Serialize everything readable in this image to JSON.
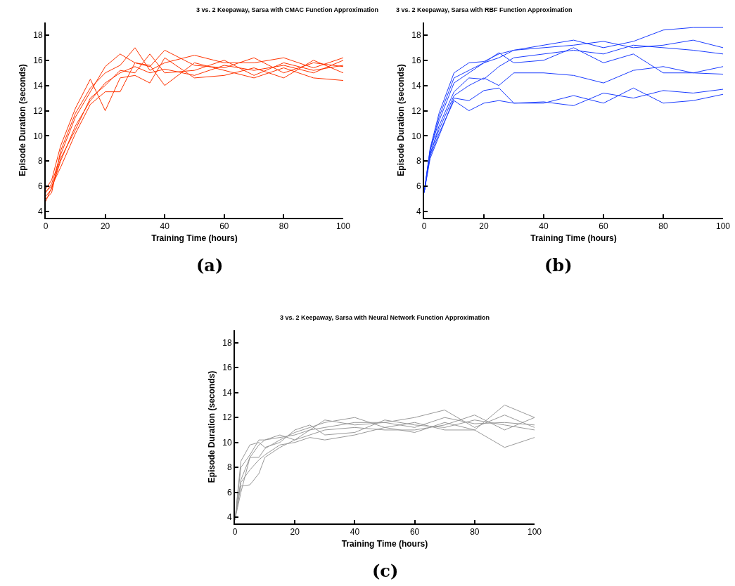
{
  "chart_data": [
    {
      "type": "line",
      "title": "3 vs. 2 Keepaway, Sarsa with CMAC Function Approximation",
      "xlabel": "Training Time (hours)",
      "ylabel": "Episode Duration (seconds)",
      "annotations": [
        "(a)"
      ],
      "xlim": [
        0,
        100
      ],
      "ylim": [
        3.5,
        19
      ],
      "xticks": [
        0,
        20,
        40,
        60,
        80,
        100
      ],
      "yticks": [
        4,
        6,
        8,
        10,
        12,
        14,
        16,
        18
      ],
      "x": [
        0,
        2,
        5,
        10,
        15,
        20,
        25,
        30,
        35,
        40,
        50,
        60,
        70,
        80,
        90,
        100
      ],
      "series": [
        {
          "color": "#ff3300",
          "values": [
            5.5,
            6.2,
            8.5,
            11.5,
            13.5,
            15.5,
            16.5,
            15.8,
            15.5,
            16.8,
            15.6,
            15.4,
            16.2,
            15.0,
            15.8,
            15.5
          ]
        },
        {
          "color": "#ff3300",
          "values": [
            5.2,
            5.8,
            8.0,
            10.8,
            12.8,
            14.2,
            15.0,
            15.5,
            15.0,
            15.3,
            14.8,
            15.6,
            15.2,
            15.6,
            15.0,
            16.0
          ]
        },
        {
          "color": "#ff3300",
          "values": [
            5.6,
            6.0,
            7.5,
            10.2,
            12.5,
            13.5,
            13.5,
            15.8,
            15.6,
            14.0,
            15.8,
            15.2,
            14.6,
            15.4,
            14.6,
            14.4
          ]
        },
        {
          "color": "#ff3300",
          "values": [
            5.0,
            5.5,
            8.8,
            11.8,
            13.8,
            15.0,
            15.6,
            17.0,
            15.2,
            15.8,
            16.4,
            15.8,
            15.8,
            16.2,
            15.4,
            16.2
          ]
        },
        {
          "color": "#ff3300",
          "values": [
            5.8,
            6.5,
            9.2,
            12.2,
            14.5,
            12.0,
            14.6,
            14.8,
            14.2,
            16.2,
            14.6,
            14.8,
            15.4,
            14.6,
            16.0,
            15.0
          ]
        },
        {
          "color": "#ff3300",
          "values": [
            4.8,
            5.9,
            8.2,
            10.5,
            13.0,
            14.0,
            15.2,
            15.0,
            16.5,
            15.0,
            15.2,
            16.0,
            14.8,
            15.8,
            15.2,
            15.6
          ]
        }
      ]
    },
    {
      "type": "line",
      "title": "3 vs. 2 Keepaway, Sarsa with RBF Function Approximation",
      "xlabel": "Training Time (hours)",
      "ylabel": "Episode Duration (seconds)",
      "annotations": [
        "(b)"
      ],
      "xlim": [
        0,
        100
      ],
      "ylim": [
        3.5,
        19
      ],
      "xticks": [
        0,
        20,
        40,
        60,
        80,
        100
      ],
      "yticks": [
        4,
        6,
        8,
        10,
        12,
        14,
        16,
        18
      ],
      "x": [
        0,
        2,
        5,
        10,
        15,
        20,
        25,
        30,
        40,
        50,
        60,
        70,
        80,
        90,
        100
      ],
      "series": [
        {
          "color": "#1a3cff",
          "values": [
            5.5,
            9.0,
            11.8,
            15.0,
            15.8,
            15.9,
            16.5,
            16.8,
            17.0,
            17.2,
            17.5,
            17.0,
            17.2,
            17.6,
            17.0
          ]
        },
        {
          "color": "#1a3cff",
          "values": [
            5.5,
            8.8,
            11.2,
            14.2,
            15.0,
            15.8,
            16.2,
            16.8,
            17.2,
            17.6,
            17.0,
            17.5,
            18.4,
            18.6,
            18.6
          ]
        },
        {
          "color": "#1a3cff",
          "values": [
            5.5,
            8.5,
            10.8,
            13.5,
            14.6,
            14.5,
            15.5,
            16.2,
            16.5,
            16.8,
            16.5,
            17.2,
            17.0,
            16.8,
            16.5
          ]
        },
        {
          "color": "#1a3cff",
          "values": [
            5.5,
            8.6,
            10.5,
            13.2,
            14.0,
            14.6,
            14.0,
            15.0,
            15.0,
            14.8,
            14.2,
            15.2,
            15.5,
            15.0,
            15.5
          ]
        },
        {
          "color": "#1a3cff",
          "values": [
            5.5,
            8.4,
            10.2,
            12.8,
            12.0,
            12.6,
            12.8,
            12.6,
            12.7,
            12.4,
            13.4,
            13.0,
            13.6,
            13.4,
            13.7
          ]
        },
        {
          "color": "#1a3cff",
          "values": [
            5.5,
            8.2,
            10.0,
            13.0,
            12.8,
            13.6,
            13.8,
            12.6,
            12.6,
            13.2,
            12.6,
            13.8,
            12.6,
            12.8,
            13.3
          ]
        },
        {
          "color": "#1a3cff",
          "values": [
            5.5,
            8.9,
            11.5,
            14.6,
            15.2,
            15.8,
            16.6,
            15.8,
            16.0,
            17.0,
            15.8,
            16.5,
            15.0,
            15.0,
            14.9
          ]
        }
      ]
    },
    {
      "type": "line",
      "title": "3 vs. 2 Keepaway, Sarsa with Neural Network Function Approximation",
      "xlabel": "Training Time (hours)",
      "ylabel": "Episode Duration (seconds)",
      "annotations": [
        "(c)"
      ],
      "xlim": [
        0,
        100
      ],
      "ylim": [
        3.5,
        19
      ],
      "xticks": [
        0,
        20,
        40,
        60,
        80,
        100
      ],
      "yticks": [
        4,
        6,
        8,
        10,
        12,
        14,
        16,
        18
      ],
      "x": [
        0,
        2,
        5,
        8,
        10,
        15,
        20,
        25,
        30,
        40,
        50,
        60,
        70,
        80,
        90,
        100
      ],
      "series": [
        {
          "color": "#999999",
          "values": [
            3.8,
            8.0,
            9.0,
            10.2,
            10.2,
            10.4,
            10.6,
            11.0,
            11.2,
            11.6,
            11.6,
            11.2,
            12.0,
            11.5,
            11.6,
            11.4
          ]
        },
        {
          "color": "#999999",
          "values": [
            3.8,
            6.5,
            6.6,
            7.5,
            8.8,
            9.6,
            10.2,
            10.6,
            11.0,
            11.2,
            11.0,
            11.0,
            11.4,
            12.2,
            11.0,
            12.0
          ]
        },
        {
          "color": "#999999",
          "values": [
            3.8,
            7.0,
            8.8,
            8.8,
            9.5,
            10.2,
            10.8,
            11.2,
            11.6,
            12.0,
            11.2,
            11.6,
            11.0,
            11.0,
            9.6,
            10.4
          ]
        },
        {
          "color": "#999999",
          "values": [
            3.8,
            8.5,
            9.8,
            10.0,
            9.6,
            10.0,
            11.0,
            11.4,
            10.6,
            10.8,
            11.8,
            11.4,
            11.2,
            11.8,
            11.4,
            11.0
          ]
        },
        {
          "color": "#999999",
          "values": [
            3.8,
            6.8,
            7.8,
            8.6,
            9.0,
            9.8,
            10.0,
            10.4,
            10.2,
            10.6,
            11.2,
            10.8,
            11.6,
            11.0,
            13.0,
            12.0
          ]
        },
        {
          "color": "#999999",
          "values": [
            3.8,
            6.0,
            8.8,
            9.8,
            10.2,
            10.6,
            10.2,
            11.0,
            11.8,
            11.4,
            11.6,
            12.0,
            12.6,
            11.2,
            12.2,
            11.2
          ]
        }
      ]
    }
  ]
}
